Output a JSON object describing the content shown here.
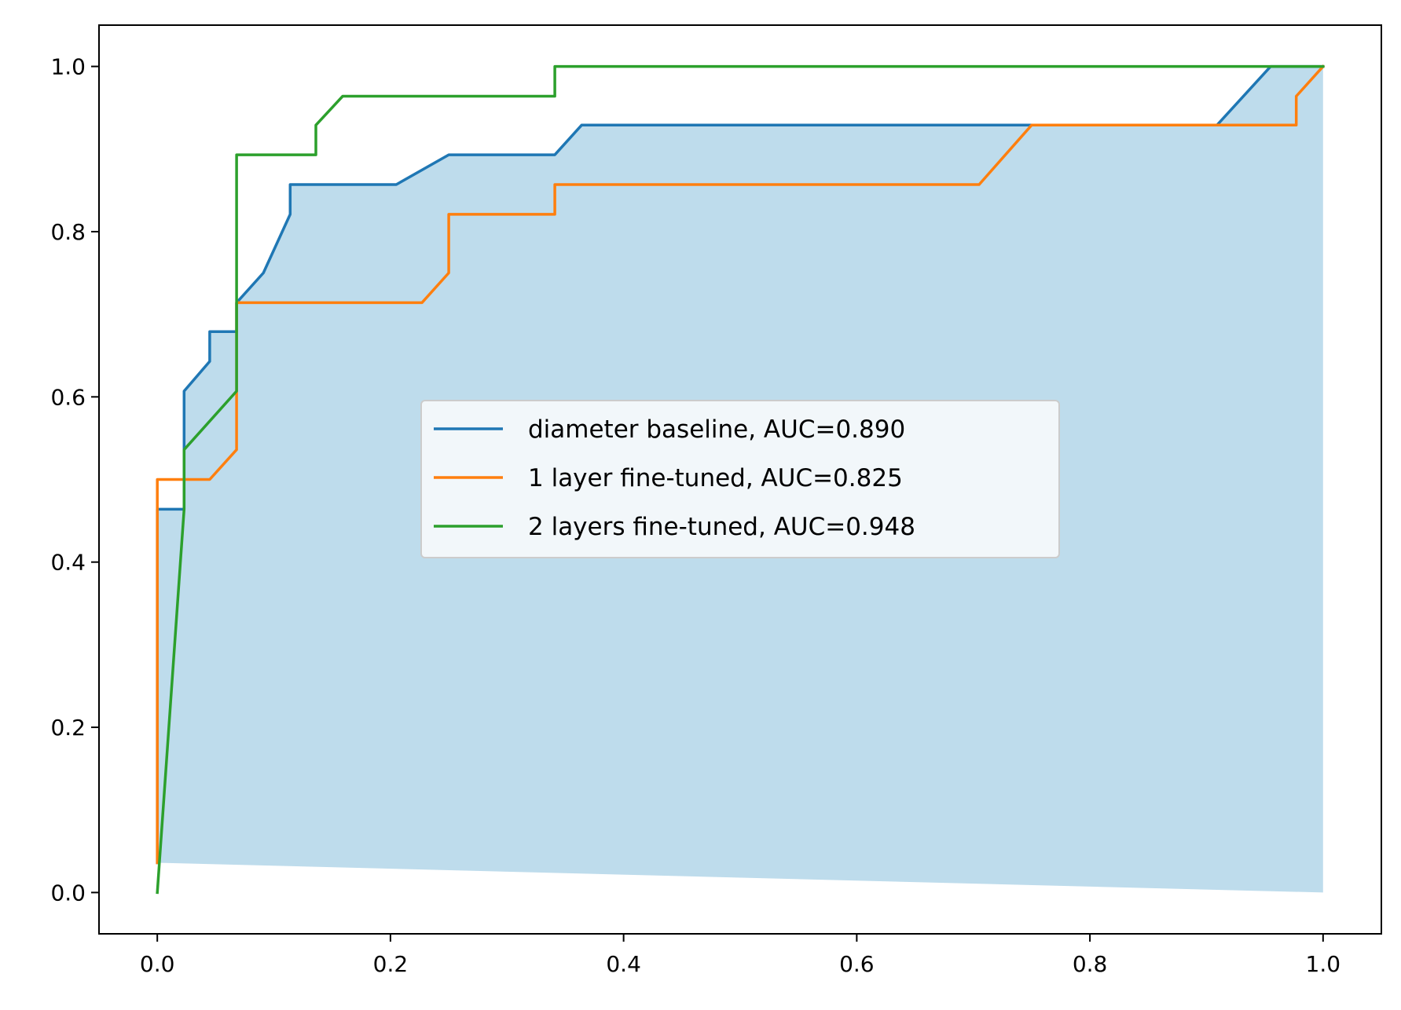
{
  "chart_data": {
    "type": "line",
    "xlim": [
      -0.05,
      1.05
    ],
    "ylim": [
      -0.05,
      1.05
    ],
    "x_ticks": [
      "0.0",
      "0.2",
      "0.4",
      "0.6",
      "0.8",
      "1.0"
    ],
    "y_ticks": [
      "0.0",
      "0.2",
      "0.4",
      "0.6",
      "0.8",
      "1.0"
    ],
    "grid": false,
    "legend_position": "center",
    "series": [
      {
        "name": "diameter baseline, AUC=0.890",
        "color": "#1f77b4",
        "points": [
          [
            0.0,
            0.036
          ],
          [
            0.0,
            0.464
          ],
          [
            0.023,
            0.464
          ],
          [
            0.023,
            0.607
          ],
          [
            0.045,
            0.643
          ],
          [
            0.045,
            0.679
          ],
          [
            0.068,
            0.679
          ],
          [
            0.068,
            0.714
          ],
          [
            0.091,
            0.75
          ],
          [
            0.114,
            0.821
          ],
          [
            0.114,
            0.857
          ],
          [
            0.205,
            0.857
          ],
          [
            0.25,
            0.893
          ],
          [
            0.341,
            0.893
          ],
          [
            0.364,
            0.929
          ],
          [
            0.909,
            0.929
          ],
          [
            0.955,
            1.0
          ],
          [
            1.0,
            1.0
          ]
        ]
      },
      {
        "name": "1 layer fine-tuned, AUC=0.825",
        "color": "#ff7f0e",
        "points": [
          [
            0.0,
            0.036
          ],
          [
            0.0,
            0.5
          ],
          [
            0.045,
            0.5
          ],
          [
            0.068,
            0.536
          ],
          [
            0.068,
            0.714
          ],
          [
            0.227,
            0.714
          ],
          [
            0.25,
            0.75
          ],
          [
            0.25,
            0.821
          ],
          [
            0.341,
            0.821
          ],
          [
            0.341,
            0.857
          ],
          [
            0.705,
            0.857
          ],
          [
            0.75,
            0.929
          ],
          [
            0.977,
            0.929
          ],
          [
            0.977,
            0.964
          ],
          [
            1.0,
            1.0
          ]
        ]
      },
      {
        "name": "2 layers fine-tuned, AUC=0.948",
        "color": "#2ca02c",
        "points": [
          [
            0.0,
            0.0
          ],
          [
            0.023,
            0.464
          ],
          [
            0.023,
            0.536
          ],
          [
            0.068,
            0.607
          ],
          [
            0.068,
            0.893
          ],
          [
            0.136,
            0.893
          ],
          [
            0.136,
            0.929
          ],
          [
            0.159,
            0.964
          ],
          [
            0.341,
            0.964
          ],
          [
            0.341,
            1.0
          ],
          [
            1.0,
            1.0
          ]
        ]
      }
    ],
    "fill": {
      "color": "#bedcec",
      "upper": [
        [
          0.0,
          0.464
        ],
        [
          0.023,
          0.464
        ],
        [
          0.023,
          0.607
        ],
        [
          0.045,
          0.643
        ],
        [
          0.045,
          0.679
        ],
        [
          0.068,
          0.679
        ],
        [
          0.068,
          0.714
        ],
        [
          0.091,
          0.75
        ],
        [
          0.114,
          0.821
        ],
        [
          0.114,
          0.857
        ],
        [
          0.205,
          0.857
        ],
        [
          0.25,
          0.893
        ],
        [
          0.341,
          0.893
        ],
        [
          0.364,
          0.929
        ],
        [
          0.909,
          0.929
        ],
        [
          0.955,
          1.0
        ],
        [
          1.0,
          1.0
        ]
      ],
      "lower": [
        [
          1.0,
          0.0
        ],
        [
          0.0,
          0.036
        ]
      ]
    }
  }
}
